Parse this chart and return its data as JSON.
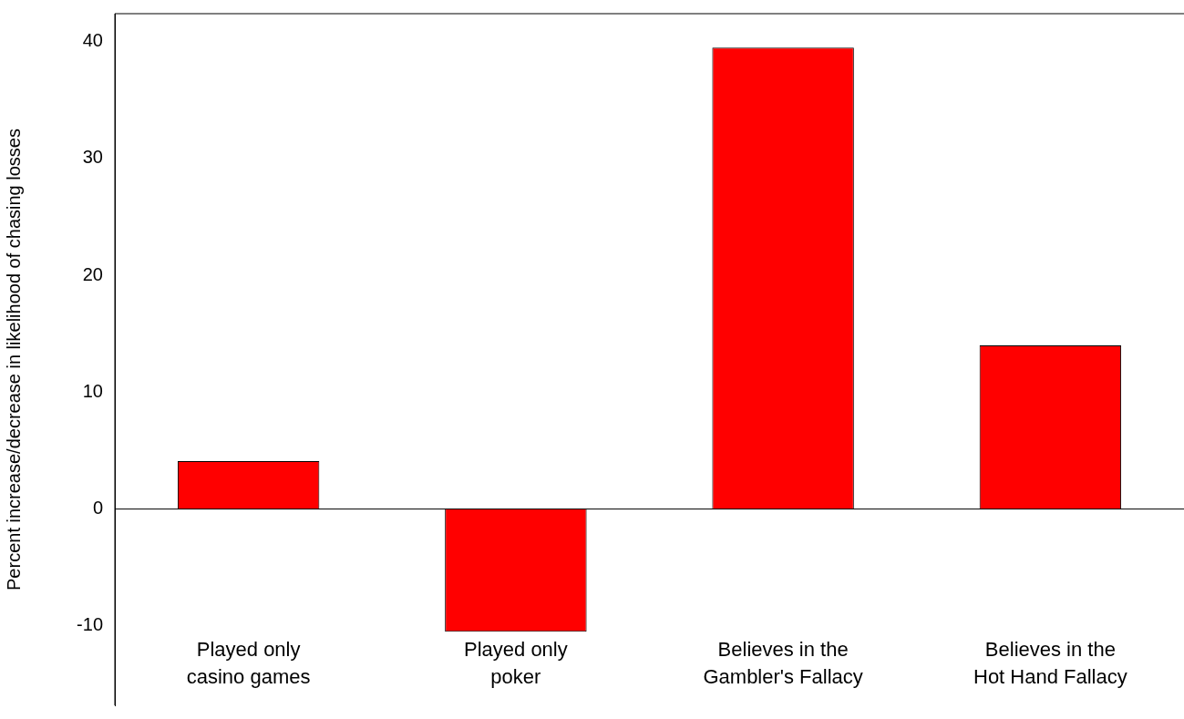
{
  "chart_data": {
    "type": "bar",
    "ylabel": "Percent increase/decrease in likelihood of chasing losses",
    "categories": [
      "Played only\ncasino games",
      "Played only\npoker",
      "Believes in the\nGambler's Fallacy",
      "Believes in the\nHot Hand Fallacy"
    ],
    "values": [
      4.1,
      -10.5,
      39.5,
      14
    ],
    "color": "#ff0000",
    "ylim": [
      -16.8,
      42.4
    ],
    "yticks": [
      -10,
      0,
      10,
      20,
      30,
      40
    ],
    "ref_lines": [
      {
        "axis": "y",
        "value": 0,
        "color": "#000000"
      }
    ],
    "grid": false,
    "legend": false
  }
}
